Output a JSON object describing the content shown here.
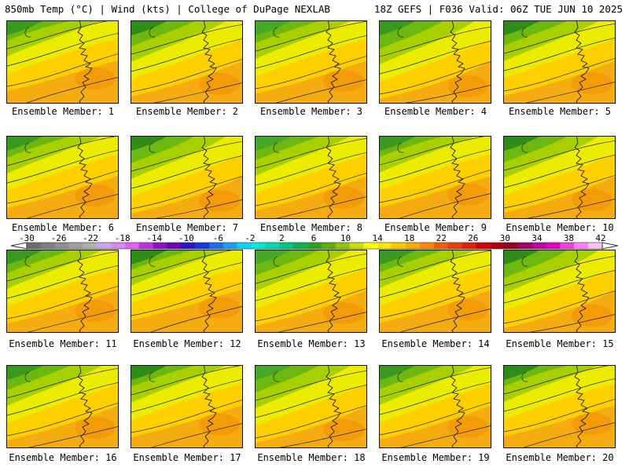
{
  "header": {
    "left": "850mb Temp (°C) | Wind (kts) | College of DuPage NEXLAB",
    "right": "18Z GEFS | F036 Valid: 06Z TUE JUN 10 2025"
  },
  "panels": [
    {
      "label": "Ensemble Member: 1"
    },
    {
      "label": "Ensemble Member: 2"
    },
    {
      "label": "Ensemble Member: 3"
    },
    {
      "label": "Ensemble Member: 4"
    },
    {
      "label": "Ensemble Member: 5"
    },
    {
      "label": "Ensemble Member: 6"
    },
    {
      "label": "Ensemble Member: 7"
    },
    {
      "label": "Ensemble Member: 8"
    },
    {
      "label": "Ensemble Member: 9"
    },
    {
      "label": "Ensemble Member: 10"
    },
    {
      "label": "Ensemble Member: 11"
    },
    {
      "label": "Ensemble Member: 12"
    },
    {
      "label": "Ensemble Member: 13"
    },
    {
      "label": "Ensemble Member: 14"
    },
    {
      "label": "Ensemble Member: 15"
    },
    {
      "label": "Ensemble Member: 16"
    },
    {
      "label": "Ensemble Member: 17"
    },
    {
      "label": "Ensemble Member: 18"
    },
    {
      "label": "Ensemble Member: 19"
    },
    {
      "label": "Ensemble Member: 20"
    }
  ],
  "colorbar": {
    "ticks": [
      "-30",
      "-26",
      "-22",
      "-18",
      "-14",
      "-10",
      "-6",
      "-2",
      "2",
      "6",
      "10",
      "14",
      "18",
      "22",
      "26",
      "30",
      "34",
      "38",
      "42"
    ],
    "colors": [
      "#6e6e6e",
      "#7f7f7f",
      "#8e8e8e",
      "#9f9f9f",
      "#b0b0b0",
      "#c9a8e8",
      "#d58af2",
      "#e060f0",
      "#c030e0",
      "#8a10c8",
      "#6a00b8",
      "#3010c8",
      "#1838e0",
      "#1e6af0",
      "#18a0f5",
      "#10d0f8",
      "#00e8e0",
      "#00d8b0",
      "#00c880",
      "#10b050",
      "#30a020",
      "#58b000",
      "#90c800",
      "#c8e000",
      "#ffff00",
      "#ffe800",
      "#ffc800",
      "#ffaa00",
      "#ff8800",
      "#f06000",
      "#e84000",
      "#e02000",
      "#d00000",
      "#b00010",
      "#900020",
      "#a00060",
      "#c000a0",
      "#e000c0",
      "#f040e0",
      "#ff80ff",
      "#ffc0ff"
    ],
    "accent_fill": "#f5a800"
  }
}
